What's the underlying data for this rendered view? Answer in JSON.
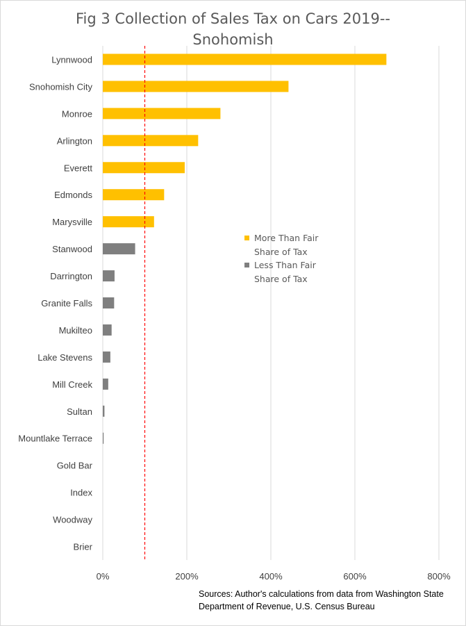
{
  "chart_data": {
    "type": "bar",
    "orientation": "horizontal",
    "title_lines": [
      "Fig 3 Collection of Sales Tax on Cars 2019--",
      "Snohomish"
    ],
    "categories": [
      "Lynnwood",
      "Snohomish City",
      "Monroe",
      "Arlington",
      "Everett",
      "Edmonds",
      "Marysville",
      "Stanwood",
      "Darrington",
      "Granite Falls",
      "Mukilteo",
      "Lake Stevens",
      "Mill Creek",
      "Sultan",
      "Mountlake Terrace",
      "Gold Bar",
      "Index",
      "Woodway",
      "Brier"
    ],
    "values": [
      675,
      442,
      280,
      227,
      195,
      146,
      122,
      77,
      28,
      27,
      21,
      18,
      13,
      4,
      2,
      0,
      0,
      0,
      0
    ],
    "series": [
      {
        "name": "More Than Fair Share of Tax",
        "color": "#ffc000"
      },
      {
        "name": "Less Than Fair Share of Tax",
        "color": "#7f7f7f"
      }
    ],
    "series_of_category": [
      0,
      0,
      0,
      0,
      0,
      0,
      0,
      1,
      1,
      1,
      1,
      1,
      1,
      1,
      1,
      1,
      1,
      1,
      1
    ],
    "xlim": [
      0,
      800
    ],
    "xticks": [
      0,
      200,
      400,
      600,
      800
    ],
    "xtick_labels": [
      "0%",
      "200%",
      "400%",
      "600%",
      "800%"
    ],
    "reference_line": {
      "value": 100,
      "style": "dashed",
      "color": "#ff0000"
    },
    "grid": "vertical",
    "legend_position": "center-right"
  },
  "source": "Sources: Author's calculations from data from Washington State Department of Revenue, U.S. Census Bureau"
}
